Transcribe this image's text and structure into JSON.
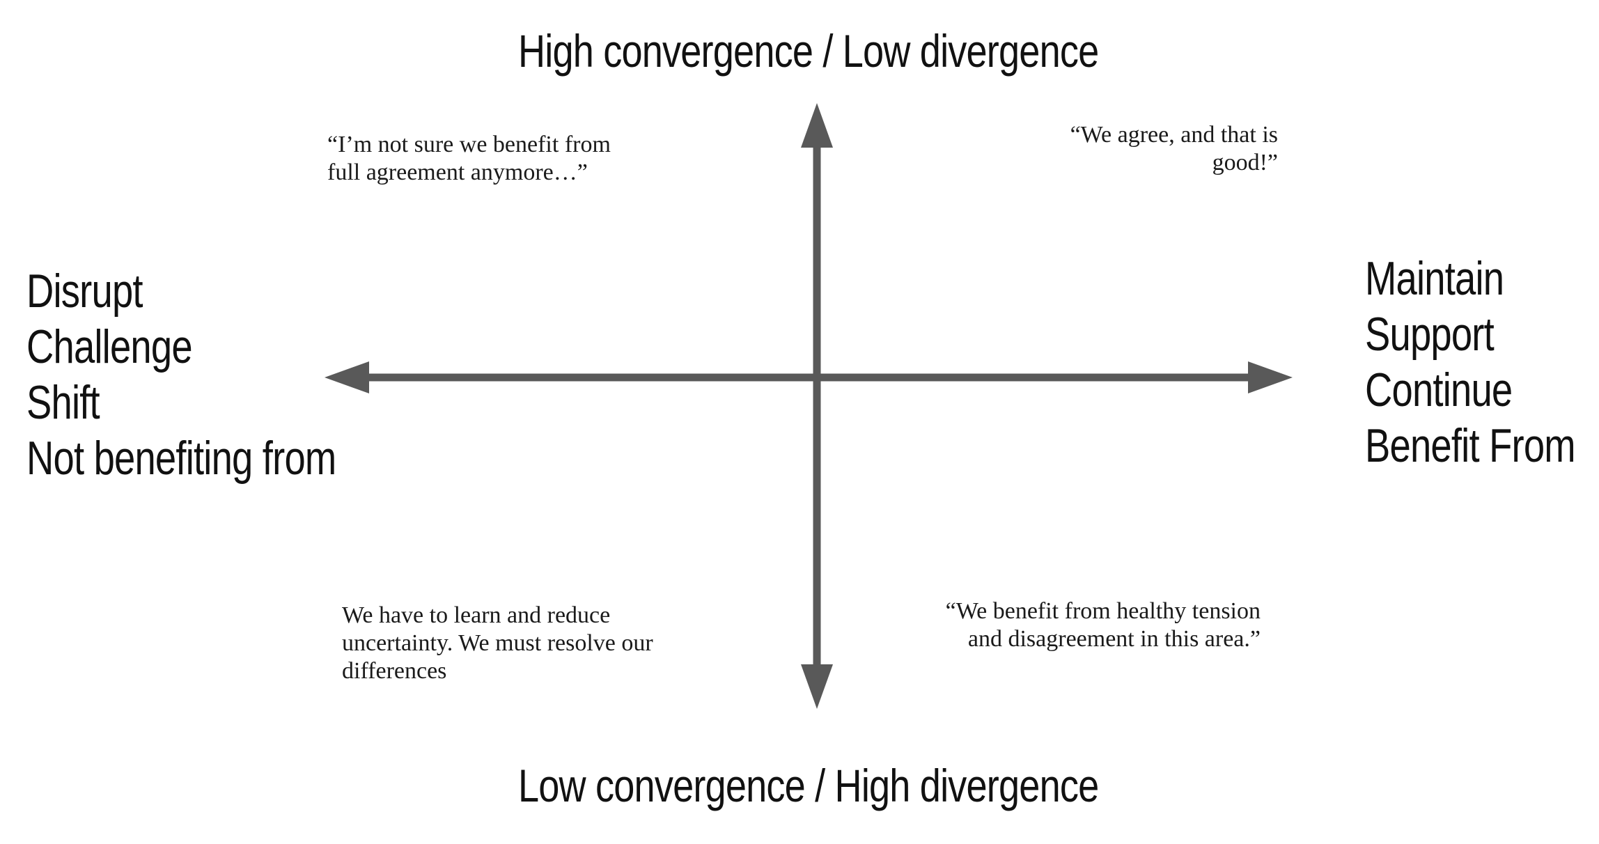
{
  "vertical_axis": {
    "top_label": "High convergence / Low divergence",
    "bottom_label": "Low convergence  / High divergence"
  },
  "horizontal_axis": {
    "left_labels": [
      "Disrupt",
      "Challenge",
      "Shift",
      "Not benefiting from"
    ],
    "right_labels": [
      "Maintain",
      "Support",
      "Continue",
      "Benefit From"
    ]
  },
  "quadrants": {
    "top_left": "“I’m not sure we benefit from full agreement anymore…”",
    "top_right": "“We agree, and that is good!”",
    "bottom_left": "We have to learn and reduce uncertainty. We must resolve our differences",
    "bottom_right": "“We benefit from healthy tension and disagreement in this area.”"
  },
  "colors": {
    "axis": "#595959",
    "text": "#111111"
  }
}
